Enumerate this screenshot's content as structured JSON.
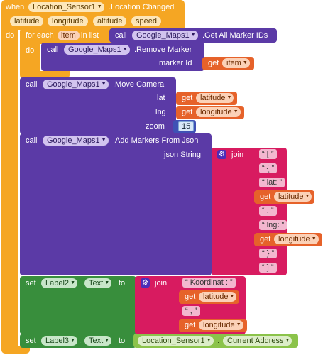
{
  "event": {
    "when": "when",
    "component": "Location_Sensor1",
    "event_name": ".Location Changed",
    "params": [
      "latitude",
      "longitude",
      "altitude",
      "speed"
    ],
    "do": "do"
  },
  "for_each": {
    "for_each": "for each",
    "var": "item",
    "in_list": "in list",
    "do": "do",
    "call": "call",
    "component": "Google_Maps1",
    "method": ".Get All Marker IDs"
  },
  "remove_marker": {
    "call": "call",
    "component": "Google_Maps1",
    "method": ".Remove Marker",
    "arg_label": "marker Id",
    "get": "get",
    "get_var": "item"
  },
  "move_camera": {
    "call": "call",
    "component": "Google_Maps1",
    "method": ".Move Camera",
    "lat_label": "lat",
    "lng_label": "lng",
    "zoom_label": "zoom",
    "get": "get",
    "lat_var": "latitude",
    "lng_var": "longitude",
    "zoom_value": "15"
  },
  "add_markers": {
    "call": "call",
    "component": "Google_Maps1",
    "method": ".Add Markers From Json",
    "json_label": "json String",
    "join": "join",
    "items": [
      "[",
      "{",
      "lat:",
      "latitude",
      ",",
      "lng:",
      "longitude",
      "}",
      "]"
    ],
    "get": "get"
  },
  "set_label2": {
    "set": "set",
    "component": "Label2",
    "prop": "Text",
    "to": "to",
    "join": "join",
    "str1": "Koordinat : ",
    "var1": "latitude",
    "str2": ",",
    "var2": "longitude",
    "get": "get"
  },
  "set_label3": {
    "set": "set",
    "component": "Label3",
    "prop": "Text",
    "to": "to",
    "source_component": "Location_Sensor1",
    "source_prop": "Current Address"
  }
}
